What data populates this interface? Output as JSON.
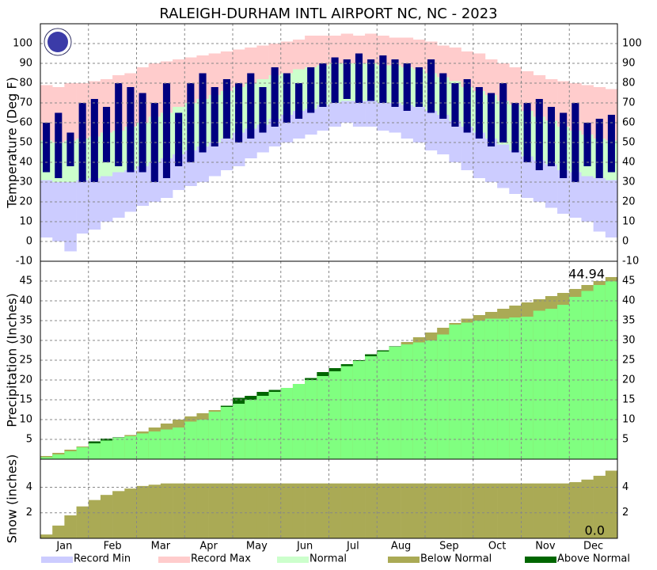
{
  "title": "RALEIGH-DURHAM INTL AIRPORT NC, NC - 2023",
  "chart_data": [
    {
      "type": "temperature",
      "y_label": "Temperature (Deg F)",
      "ylim": [
        -10,
        110
      ],
      "yticks": [
        -10,
        0,
        10,
        20,
        30,
        40,
        50,
        60,
        70,
        80,
        90,
        100
      ],
      "grid": true,
      "record_max": {
        "color": "#ffcccc",
        "values": [
          79,
          78,
          80,
          80,
          81,
          82,
          84,
          85,
          88,
          90,
          91,
          92,
          93,
          94,
          95,
          96,
          97,
          98,
          99,
          100,
          101,
          102,
          104,
          104,
          104,
          105,
          104,
          105,
          104,
          103,
          103,
          102,
          101,
          99,
          98,
          96,
          95,
          92,
          90,
          88,
          86,
          84,
          82,
          81,
          80,
          79,
          78,
          77
        ]
      },
      "normal_high": {
        "color": "#ccffcc",
        "values": [
          51,
          50,
          51,
          52,
          53,
          55,
          56,
          58,
          60,
          63,
          65,
          68,
          70,
          72,
          74,
          76,
          78,
          80,
          82,
          84,
          85,
          87,
          88,
          89,
          90,
          90,
          90,
          90,
          89,
          89,
          88,
          87,
          85,
          83,
          81,
          78,
          76,
          74,
          71,
          69,
          66,
          63,
          61,
          58,
          56,
          54,
          52,
          51
        ]
      },
      "normal_low": {
        "color": "#ccccff",
        "values": [
          31,
          30,
          30,
          31,
          32,
          33,
          35,
          36,
          38,
          40,
          42,
          44,
          46,
          48,
          50,
          52,
          55,
          57,
          59,
          62,
          64,
          66,
          67,
          69,
          70,
          71,
          71,
          71,
          70,
          70,
          69,
          68,
          66,
          64,
          61,
          58,
          55,
          52,
          49,
          46,
          43,
          41,
          39,
          36,
          35,
          33,
          32,
          31
        ]
      },
      "record_min": {
        "values": [
          2,
          0,
          -5,
          4,
          6,
          10,
          12,
          15,
          18,
          20,
          22,
          26,
          28,
          30,
          33,
          36,
          38,
          42,
          45,
          48,
          50,
          52,
          54,
          56,
          58,
          60,
          58,
          58,
          56,
          55,
          52,
          50,
          46,
          44,
          40,
          36,
          32,
          30,
          27,
          24,
          22,
          20,
          17,
          14,
          12,
          10,
          5,
          2
        ]
      },
      "actual_high": {
        "color": "#000080",
        "values": [
          60,
          65,
          55,
          70,
          72,
          68,
          80,
          78,
          75,
          70,
          80,
          65,
          80,
          85,
          78,
          82,
          80,
          85,
          78,
          88,
          85,
          80,
          88,
          90,
          93,
          92,
          95,
          92,
          94,
          92,
          90,
          88,
          92,
          85,
          80,
          82,
          78,
          75,
          80,
          70,
          70,
          72,
          68,
          65,
          70,
          60,
          62,
          64
        ]
      },
      "actual_low": {
        "values": [
          35,
          32,
          38,
          30,
          30,
          40,
          38,
          35,
          35,
          30,
          32,
          38,
          40,
          45,
          48,
          52,
          50,
          52,
          55,
          58,
          60,
          62,
          65,
          68,
          70,
          72,
          70,
          71,
          70,
          68,
          66,
          68,
          65,
          62,
          58,
          55,
          52,
          48,
          50,
          45,
          40,
          36,
          38,
          32,
          30,
          38,
          32,
          35
        ]
      }
    },
    {
      "type": "precipitation",
      "y_label": "Precipitation (Inches)",
      "ylim": [
        0,
        50
      ],
      "yticks": [
        5,
        10,
        15,
        20,
        25,
        30,
        35,
        40,
        45
      ],
      "grid": true,
      "annotation": "44.94",
      "normal": {
        "values": [
          0.8,
          1.6,
          2.4,
          3.2,
          4.0,
          4.7,
          5.4,
          6.1,
          7.0,
          8.0,
          9.0,
          10.0,
          10.8,
          11.6,
          12.4,
          13.2,
          14.0,
          15.0,
          16.0,
          17.0,
          18.0,
          19.0,
          20.0,
          21.0,
          22.2,
          23.5,
          24.8,
          26.0,
          27.2,
          28.4,
          29.6,
          30.8,
          32.0,
          33.2,
          34.4,
          35.5,
          36.4,
          37.2,
          38.0,
          38.8,
          39.6,
          40.4,
          41.2,
          42.0,
          43.0,
          44.0,
          45.0,
          46.0
        ]
      },
      "actual": {
        "color": "#80ff80",
        "values": [
          0.5,
          1.2,
          2.0,
          3.0,
          4.5,
          5.2,
          5.5,
          5.8,
          6.5,
          7.0,
          7.5,
          8.0,
          9.5,
          10.0,
          12.0,
          13.5,
          15.5,
          16.0,
          17.0,
          17.5,
          18.0,
          19.0,
          20.5,
          22.0,
          23.0,
          24.0,
          25.0,
          26.5,
          27.5,
          28.5,
          29.0,
          29.5,
          30.0,
          31.5,
          34.0,
          34.5,
          35.0,
          35.5,
          35.5,
          35.8,
          36.0,
          37.5,
          38.0,
          39.0,
          41.0,
          42.5,
          44.0,
          44.94
        ]
      }
    },
    {
      "type": "snow",
      "y_label": "Snow (inches)",
      "ylim": [
        0,
        6.2
      ],
      "yticks": [
        2,
        4
      ],
      "grid": true,
      "annotation": "0.0",
      "categories": [
        "Jan",
        "Feb",
        "Mar",
        "Apr",
        "May",
        "Jun",
        "Jul",
        "Aug",
        "Sep",
        "Oct",
        "Nov",
        "Dec"
      ],
      "normal": {
        "values": [
          0.3,
          1.0,
          1.8,
          2.5,
          3.0,
          3.4,
          3.7,
          3.9,
          4.1,
          4.2,
          4.3,
          4.3,
          4.3,
          4.3,
          4.3,
          4.3,
          4.3,
          4.3,
          4.3,
          4.3,
          4.3,
          4.3,
          4.3,
          4.3,
          4.3,
          4.3,
          4.3,
          4.3,
          4.3,
          4.3,
          4.3,
          4.3,
          4.3,
          4.3,
          4.3,
          4.3,
          4.3,
          4.3,
          4.3,
          4.3,
          4.3,
          4.3,
          4.3,
          4.3,
          4.4,
          4.6,
          4.9,
          5.3
        ]
      },
      "actual": {
        "color": "#80ff80",
        "values": [
          0,
          0,
          0,
          0,
          0,
          0,
          0,
          0,
          0,
          0,
          0,
          0,
          0,
          0,
          0,
          0,
          0,
          0,
          0,
          0,
          0,
          0,
          0,
          0,
          0,
          0,
          0,
          0,
          0,
          0,
          0,
          0,
          0,
          0,
          0,
          0,
          0,
          0,
          0,
          0,
          0,
          0,
          0,
          0,
          0,
          0,
          0,
          0
        ]
      }
    }
  ],
  "legend": [
    {
      "name": "Record Min",
      "color": "#ccccff"
    },
    {
      "name": "Record Max",
      "color": "#ffcccc"
    },
    {
      "name": "Normal",
      "color": "#ccffcc"
    },
    {
      "name": "Below Normal",
      "color": "#aaaa55"
    },
    {
      "name": "Above Normal",
      "color": "#006600"
    }
  ]
}
